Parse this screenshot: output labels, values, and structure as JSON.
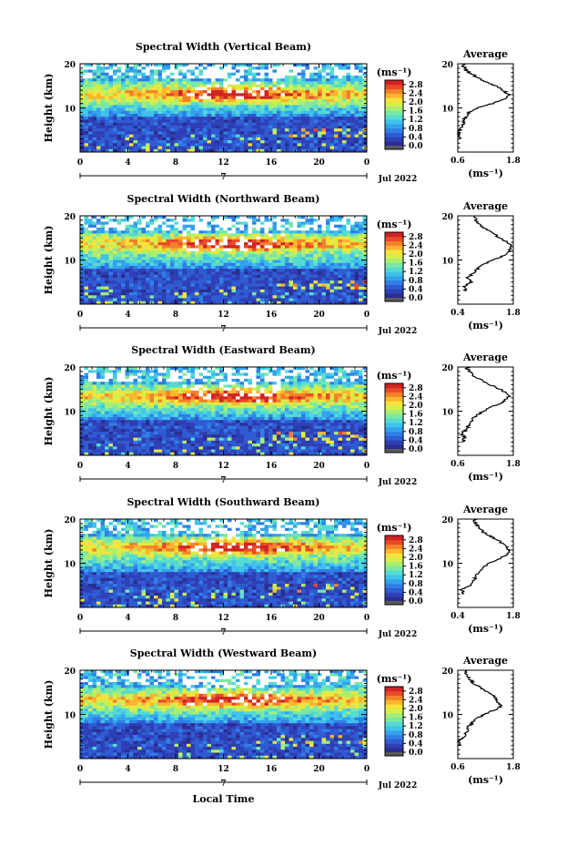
{
  "colors": {
    "scale": [
      "#2b2d8f",
      "#2f3fb5",
      "#2f5bd3",
      "#2f7ee6",
      "#33a2ee",
      "#3fc3ea",
      "#54dbd3",
      "#7ae8a6",
      "#a8ee72",
      "#d3ee4c",
      "#f6e23a",
      "#fbb52e",
      "#f4802a",
      "#e84a2a",
      "#d12323"
    ],
    "zero": "#5a5a5a",
    "missing": "#ffffff"
  },
  "chart_data": [
    {
      "type": "heatmap",
      "title": "Spectral Width (Vertical Beam)",
      "ylabel": "Height (km)",
      "xlabel": "",
      "xticks": [
        "0",
        "4",
        "8",
        "12",
        "16",
        "20",
        "0"
      ],
      "yticks": [
        "10",
        "20"
      ],
      "xlim": [
        0,
        24
      ],
      "ylim": [
        0,
        20
      ],
      "date_label": "Jul 2022",
      "date_marker": "7",
      "colorbar": {
        "unit": "(ms⁻¹)",
        "ticks": [
          "2.8",
          "2.4",
          "2.0",
          "1.6",
          "1.2",
          "0.8",
          "0.4",
          "0.0"
        ],
        "range": [
          0,
          3.0
        ]
      },
      "profile": {
        "title": "Average",
        "xlabel": "(ms⁻¹)",
        "xticks": [
          "0.6",
          "1.8"
        ],
        "xlim": [
          0.6,
          1.8
        ],
        "yticks": [
          "10",
          "20"
        ],
        "ylim": [
          0,
          20
        ],
        "heights": [
          3,
          4,
          5,
          6,
          7,
          8,
          9,
          10,
          11,
          12,
          13,
          14,
          15,
          16,
          17,
          18,
          19,
          20
        ],
        "values": [
          0.65,
          0.62,
          0.64,
          0.7,
          0.72,
          0.78,
          0.85,
          1.05,
          1.35,
          1.62,
          1.7,
          1.58,
          1.4,
          1.2,
          1.0,
          0.85,
          0.75,
          0.7
        ]
      }
    },
    {
      "type": "heatmap",
      "title": "Spectral Width (Northward Beam)",
      "ylabel": "Height (km)",
      "xlabel": "",
      "xticks": [
        "0",
        "4",
        "8",
        "12",
        "16",
        "20",
        "0"
      ],
      "yticks": [
        "10",
        "20"
      ],
      "xlim": [
        0,
        24
      ],
      "ylim": [
        0,
        20
      ],
      "date_label": "Jul 2022",
      "date_marker": "7",
      "colorbar": {
        "unit": "(ms⁻¹)",
        "ticks": [
          "2.8",
          "2.4",
          "2.0",
          "1.6",
          "1.2",
          "0.8",
          "0.4",
          "0.0"
        ],
        "range": [
          0,
          3.0
        ]
      },
      "profile": {
        "title": "Average",
        "xlabel": "(ms⁻¹)",
        "xticks": [
          "0.4",
          "1.8"
        ],
        "xlim": [
          0.4,
          1.8
        ],
        "yticks": [
          "10",
          "20"
        ],
        "ylim": [
          0,
          20
        ],
        "heights": [
          3,
          4,
          5,
          6,
          7,
          8,
          9,
          10,
          11,
          12,
          13,
          14,
          15,
          16,
          17,
          18,
          19,
          20
        ],
        "values": [
          0.6,
          0.55,
          0.75,
          0.65,
          0.8,
          0.9,
          1.05,
          1.3,
          1.55,
          1.7,
          1.75,
          1.65,
          1.45,
          1.3,
          1.1,
          0.95,
          0.85,
          0.8
        ]
      }
    },
    {
      "type": "heatmap",
      "title": "Spectral Width (Eastward Beam)",
      "ylabel": "Height (km)",
      "xlabel": "",
      "xticks": [
        "0",
        "4",
        "8",
        "12",
        "16",
        "20",
        "0"
      ],
      "yticks": [
        "10",
        "20"
      ],
      "xlim": [
        0,
        24
      ],
      "ylim": [
        0,
        20
      ],
      "date_label": "Jul 2022",
      "date_marker": "7",
      "colorbar": {
        "unit": "(ms⁻¹)",
        "ticks": [
          "2.8",
          "2.4",
          "2.0",
          "1.6",
          "1.2",
          "0.8",
          "0.4",
          "0.0"
        ],
        "range": [
          0,
          3.0
        ]
      },
      "profile": {
        "title": "Average",
        "xlabel": "(ms⁻¹)",
        "xticks": [
          "0.6",
          "1.8"
        ],
        "xlim": [
          0.6,
          1.8
        ],
        "yticks": [
          "10",
          "20"
        ],
        "ylim": [
          0,
          20
        ],
        "heights": [
          3,
          4,
          5,
          6,
          7,
          8,
          9,
          10,
          11,
          12,
          13,
          14,
          15,
          16,
          17,
          18,
          19,
          20
        ],
        "values": [
          0.7,
          0.75,
          0.68,
          0.8,
          0.85,
          0.9,
          1.0,
          1.15,
          1.35,
          1.55,
          1.7,
          1.68,
          1.5,
          1.3,
          1.1,
          0.95,
          0.85,
          0.78
        ]
      }
    },
    {
      "type": "heatmap",
      "title": "Spectral Width (Southward Beam)",
      "ylabel": "Height (km)",
      "xlabel": "",
      "xticks": [
        "0",
        "4",
        "8",
        "12",
        "16",
        "20",
        "0"
      ],
      "yticks": [
        "10",
        "20"
      ],
      "xlim": [
        0,
        24
      ],
      "ylim": [
        0,
        20
      ],
      "date_label": "Jul 2022",
      "date_marker": "7",
      "colorbar": {
        "unit": "(ms⁻¹)",
        "ticks": [
          "2.8",
          "2.4",
          "2.0",
          "1.6",
          "1.2",
          "0.8",
          "0.4",
          "0.0"
        ],
        "range": [
          0,
          3.0
        ]
      },
      "profile": {
        "title": "Average",
        "xlabel": "(ms⁻¹)",
        "xticks": [
          "0.4",
          "1.8"
        ],
        "xlim": [
          0.4,
          1.8
        ],
        "yticks": [
          "10",
          "20"
        ],
        "ylim": [
          0,
          20
        ],
        "heights": [
          3,
          4,
          5,
          6,
          7,
          8,
          9,
          10,
          11,
          12,
          13,
          14,
          15,
          16,
          17,
          18,
          19,
          20
        ],
        "values": [
          0.55,
          0.5,
          0.7,
          0.8,
          0.85,
          0.95,
          1.05,
          1.2,
          1.45,
          1.65,
          1.7,
          1.6,
          1.45,
          1.25,
          1.05,
          0.95,
          0.85,
          0.8
        ]
      }
    },
    {
      "type": "heatmap",
      "title": "Spectral Width (Westward Beam)",
      "ylabel": "Height (km)",
      "xlabel": "Local Time",
      "xticks": [
        "0",
        "4",
        "8",
        "12",
        "16",
        "20",
        "0"
      ],
      "yticks": [
        "10",
        "20"
      ],
      "xlim": [
        0,
        24
      ],
      "ylim": [
        0,
        20
      ],
      "date_label": "Jul 2022",
      "date_marker": "7",
      "colorbar": {
        "unit": "(ms⁻¹)",
        "ticks": [
          "2.8",
          "2.4",
          "2.0",
          "1.6",
          "1.2",
          "0.8",
          "0.4",
          "0.0"
        ],
        "range": [
          0,
          3.0
        ]
      },
      "profile": {
        "title": "Average",
        "xlabel": "(ms⁻¹)",
        "xticks": [
          "0.6",
          "1.8"
        ],
        "xlim": [
          0.6,
          1.8
        ],
        "yticks": [
          "10",
          "20"
        ],
        "ylim": [
          0,
          20
        ],
        "heights": [
          3,
          4,
          5,
          6,
          7,
          8,
          9,
          10,
          11,
          12,
          13,
          14,
          15,
          16,
          17,
          18,
          19,
          20
        ],
        "values": [
          0.65,
          0.62,
          0.75,
          0.78,
          0.82,
          0.9,
          1.0,
          1.15,
          1.4,
          1.55,
          1.45,
          1.4,
          1.25,
          1.1,
          0.95,
          0.85,
          0.78,
          0.75
        ]
      }
    }
  ]
}
